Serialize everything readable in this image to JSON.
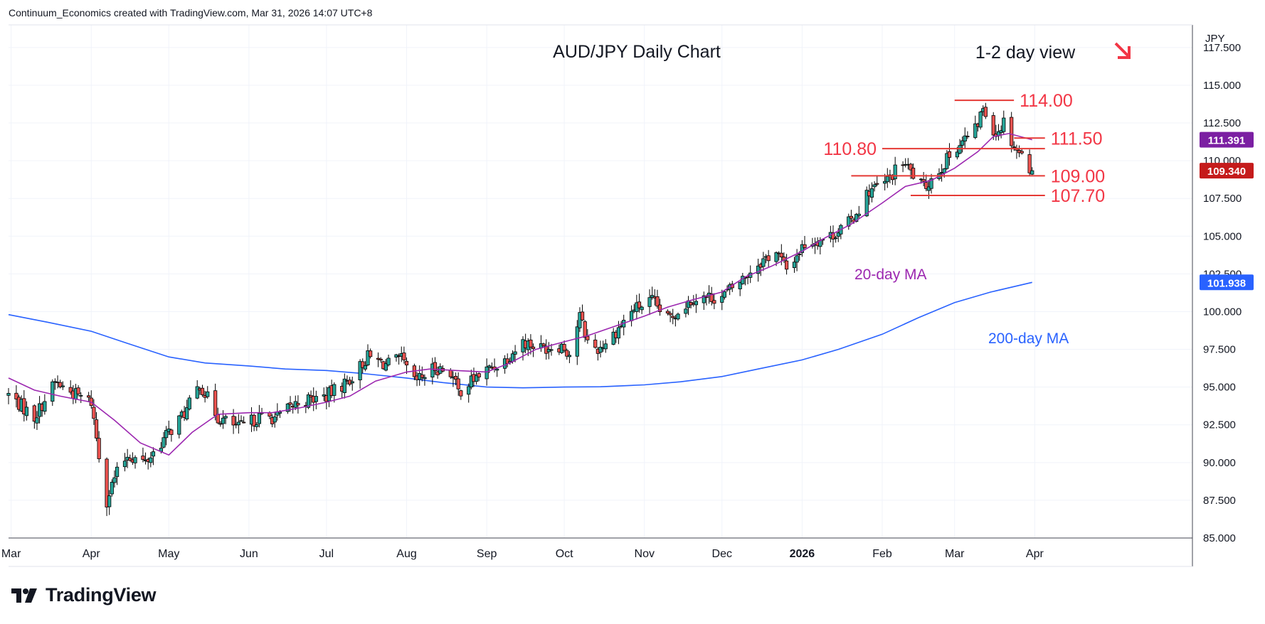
{
  "header": {
    "attribution": "Continuum_Economics created with TradingView.com, Mar 31, 2026 14:07 UTC+8"
  },
  "footer": {
    "logo_text": "TradingView"
  },
  "colors": {
    "up": "#26a69a",
    "down": "#ef5350",
    "ma20": "#9c27b0",
    "ma200": "#2962ff",
    "level": "#e53935",
    "current_price_bg": "#c51b1b",
    "ma20_badge_bg": "#7b1fa2",
    "ma200_badge_bg": "#2962ff"
  },
  "chart_data": {
    "type": "candlestick",
    "title": "AUD/JPY Daily Chart",
    "view_label": "1-2 day view",
    "view_direction": "down-right-arrow",
    "currency": "JPY",
    "ylim": [
      85.0,
      119.0
    ],
    "y_ticks": [
      "117.500",
      "115.000",
      "112.500",
      "110.000",
      "107.500",
      "105.000",
      "102.500",
      "100.000",
      "97.500",
      "95.000",
      "92.500",
      "90.000",
      "87.500",
      "85.000"
    ],
    "x_ticks": [
      "Mar",
      "Apr",
      "May",
      "Jun",
      "Jul",
      "Aug",
      "Sep",
      "Oct",
      "Nov",
      "Dec",
      "2026",
      "Feb",
      "Mar",
      "Apr"
    ],
    "grid": true,
    "levels": [
      {
        "label": "114.00",
        "value": 114.0,
        "from": "2026-03-01",
        "to": "2026-03-19",
        "label_side": "right"
      },
      {
        "label": "111.50",
        "value": 111.5,
        "from": "2026-03-24",
        "to": "2026-03-31",
        "label_side": "right"
      },
      {
        "label": "110.80",
        "value": 110.8,
        "from": "2026-02-01",
        "to": "2026-03-31",
        "label_side": "left"
      },
      {
        "label": "109.00",
        "value": 109.0,
        "from": "2026-01-20",
        "to": "2026-03-31",
        "label_side": "right"
      },
      {
        "label": "107.70",
        "value": 107.7,
        "from": "2026-02-12",
        "to": "2026-03-31",
        "label_side": "right"
      }
    ],
    "annotations": [
      {
        "text": "20-day MA",
        "near": "2025-12-25"
      },
      {
        "text": "200-day MA",
        "near": "2026-02-25"
      }
    ],
    "series": [
      {
        "name": "20-day MA",
        "badge": "111.391"
      },
      {
        "name": "200-day MA",
        "badge": "101.938"
      },
      {
        "name": "AUD/JPY",
        "badge": "109.340"
      }
    ],
    "ma200_points": [
      [
        "2025-02-28",
        99.8
      ],
      [
        "2025-03-15",
        99.3
      ],
      [
        "2025-04-01",
        98.7
      ],
      [
        "2025-04-15",
        97.9
      ],
      [
        "2025-05-01",
        97.0
      ],
      [
        "2025-05-15",
        96.6
      ],
      [
        "2025-06-01",
        96.4
      ],
      [
        "2025-06-15",
        96.2
      ],
      [
        "2025-07-01",
        96.1
      ],
      [
        "2025-07-15",
        95.9
      ],
      [
        "2025-08-01",
        95.6
      ],
      [
        "2025-08-15",
        95.3
      ],
      [
        "2025-09-01",
        95.0
      ],
      [
        "2025-09-15",
        94.95
      ],
      [
        "2025-10-01",
        95.0
      ],
      [
        "2025-10-15",
        95.02
      ],
      [
        "2025-11-01",
        95.15
      ],
      [
        "2025-11-15",
        95.35
      ],
      [
        "2025-12-01",
        95.7
      ],
      [
        "2025-12-15",
        96.2
      ],
      [
        "2026-01-01",
        96.8
      ],
      [
        "2026-01-15",
        97.5
      ],
      [
        "2026-02-01",
        98.5
      ],
      [
        "2026-02-15",
        99.6
      ],
      [
        "2026-03-01",
        100.6
      ],
      [
        "2026-03-15",
        101.3
      ],
      [
        "2026-03-31",
        101.94
      ]
    ],
    "ma20_points": [
      [
        "2025-02-28",
        95.6
      ],
      [
        "2025-03-10",
        94.8
      ],
      [
        "2025-03-20",
        94.4
      ],
      [
        "2025-04-01",
        94.0
      ],
      [
        "2025-04-10",
        92.8
      ],
      [
        "2025-04-20",
        91.3
      ],
      [
        "2025-05-01",
        90.5
      ],
      [
        "2025-05-10",
        92.0
      ],
      [
        "2025-05-20",
        93.2
      ],
      [
        "2025-06-01",
        93.3
      ],
      [
        "2025-06-10",
        93.3
      ],
      [
        "2025-06-20",
        93.6
      ],
      [
        "2025-07-01",
        94.0
      ],
      [
        "2025-07-10",
        94.4
      ],
      [
        "2025-07-20",
        95.4
      ],
      [
        "2025-08-01",
        96.0
      ],
      [
        "2025-08-10",
        96.2
      ],
      [
        "2025-08-20",
        96.1
      ],
      [
        "2025-09-01",
        96.0
      ],
      [
        "2025-09-10",
        96.6
      ],
      [
        "2025-09-20",
        97.5
      ],
      [
        "2025-10-01",
        98.0
      ],
      [
        "2025-10-10",
        98.4
      ],
      [
        "2025-10-20",
        99.0
      ],
      [
        "2025-11-01",
        99.7
      ],
      [
        "2025-11-10",
        100.3
      ],
      [
        "2025-11-20",
        100.8
      ],
      [
        "2025-12-01",
        101.3
      ],
      [
        "2025-12-10",
        102.3
      ],
      [
        "2025-12-20",
        103.0
      ],
      [
        "2026-01-01",
        104.0
      ],
      [
        "2026-01-10",
        104.9
      ],
      [
        "2026-01-20",
        105.8
      ],
      [
        "2026-02-01",
        107.2
      ],
      [
        "2026-02-10",
        108.3
      ],
      [
        "2026-02-20",
        108.7
      ],
      [
        "2026-03-01",
        109.5
      ],
      [
        "2026-03-10",
        110.6
      ],
      [
        "2026-03-16",
        111.6
      ],
      [
        "2026-03-22",
        111.8
      ],
      [
        "2026-03-31",
        111.39
      ]
    ],
    "close_anchors": [
      [
        "2025-02-28",
        94.5
      ],
      [
        "2025-03-10",
        93.0
      ],
      [
        "2025-03-18",
        95.3
      ],
      [
        "2025-03-25",
        94.6
      ],
      [
        "2025-04-01",
        94.0
      ],
      [
        "2025-04-04",
        90.5
      ],
      [
        "2025-04-07",
        87.5
      ],
      [
        "2025-04-10",
        89.0
      ],
      [
        "2025-04-15",
        90.5
      ],
      [
        "2025-04-22",
        90.0
      ],
      [
        "2025-05-01",
        92.0
      ],
      [
        "2025-05-08",
        93.5
      ],
      [
        "2025-05-13",
        95.2
      ],
      [
        "2025-05-20",
        93.0
      ],
      [
        "2025-05-28",
        92.3
      ],
      [
        "2025-06-05",
        93.0
      ],
      [
        "2025-06-12",
        93.0
      ],
      [
        "2025-06-20",
        94.0
      ],
      [
        "2025-07-01",
        94.4
      ],
      [
        "2025-07-10",
        95.5
      ],
      [
        "2025-07-17",
        97.0
      ],
      [
        "2025-07-24",
        96.5
      ],
      [
        "2025-07-30",
        96.8
      ],
      [
        "2025-08-04",
        95.3
      ],
      [
        "2025-08-12",
        96.3
      ],
      [
        "2025-08-18",
        96.0
      ],
      [
        "2025-08-21",
        94.7
      ],
      [
        "2025-08-29",
        95.8
      ],
      [
        "2025-09-08",
        96.8
      ],
      [
        "2025-09-15",
        98.0
      ],
      [
        "2025-09-22",
        97.6
      ],
      [
        "2025-09-30",
        97.8
      ],
      [
        "2025-10-03",
        97.2
      ],
      [
        "2025-10-07",
        99.7
      ],
      [
        "2025-10-10",
        98.0
      ],
      [
        "2025-10-14",
        97.5
      ],
      [
        "2025-10-20",
        98.5
      ],
      [
        "2025-10-28",
        100.2
      ],
      [
        "2025-11-04",
        100.7
      ],
      [
        "2025-11-10",
        99.5
      ],
      [
        "2025-11-20",
        100.9
      ],
      [
        "2025-12-01",
        101.0
      ],
      [
        "2025-12-08",
        102.0
      ],
      [
        "2025-12-15",
        103.2
      ],
      [
        "2025-12-22",
        104.0
      ],
      [
        "2025-12-26",
        102.8
      ],
      [
        "2026-01-02",
        104.5
      ],
      [
        "2026-01-12",
        105.0
      ],
      [
        "2026-01-20",
        106.0
      ],
      [
        "2026-01-27",
        108.0
      ],
      [
        "2026-02-02",
        108.5
      ],
      [
        "2026-02-09",
        109.9
      ],
      [
        "2026-02-17",
        108.2
      ],
      [
        "2026-02-24",
        109.6
      ],
      [
        "2026-03-02",
        111.0
      ],
      [
        "2026-03-09",
        112.0
      ],
      [
        "2026-03-12",
        113.5
      ],
      [
        "2026-03-17",
        111.8
      ],
      [
        "2026-03-20",
        112.6
      ],
      [
        "2026-03-24",
        111.0
      ],
      [
        "2026-03-27",
        110.3
      ],
      [
        "2026-03-31",
        109.34
      ]
    ]
  }
}
